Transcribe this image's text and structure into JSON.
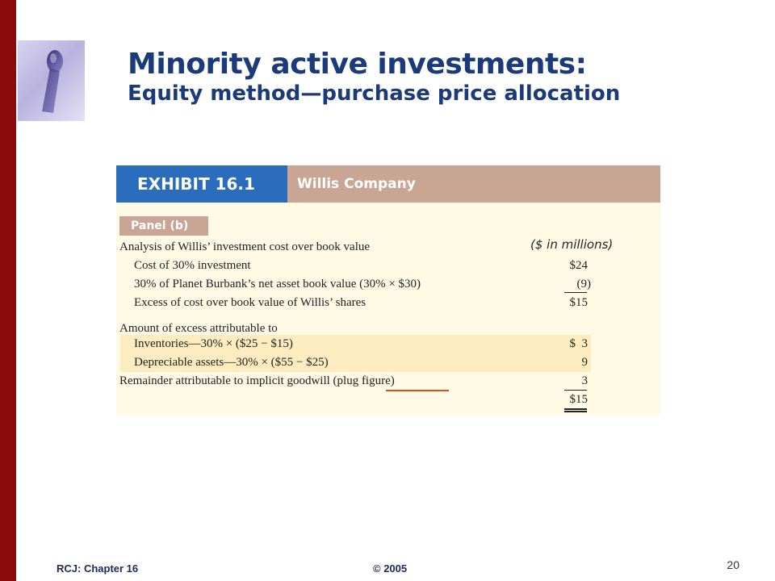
{
  "slide": {
    "title": "Minority active investments:",
    "subtitle": "Equity method—purchase price allocation"
  },
  "exhibit": {
    "label": "EXHIBIT 16.1",
    "company": "Willis Company",
    "panel": "Panel (b)",
    "units": "($ in millions)",
    "rows": [
      {
        "label": "Analysis of Willis’ investment cost over book value",
        "amount": ""
      },
      {
        "label": "Cost of 30% investment",
        "amount": "$24"
      },
      {
        "label": "30% of Planet Burbank’s net asset book value (30% × $30)",
        "amount": "(9)"
      },
      {
        "label": "Excess of cost over book value of Willis’ shares",
        "amount": "$15"
      },
      {
        "label": "Amount of excess attributable to",
        "amount": ""
      },
      {
        "label": "Inventories—30% × ($25 − $15)",
        "amount": "$  3"
      },
      {
        "label": "Depreciable assets—30% × ($55 − $25)",
        "amount": "9"
      },
      {
        "label": "Remainder attributable to implicit goodwill (plug figure)",
        "amount": "3"
      },
      {
        "label": "",
        "amount": "$15"
      }
    ]
  },
  "footer": {
    "chapter": "RCJ: Chapter 16",
    "copyright": "© 2005",
    "page_number": "20"
  },
  "colors": {
    "sidebar": "#8b0a0e",
    "title": "#1a3a7a",
    "exhibit_label_bg": "#2a6dbd",
    "exhibit_header_bg": "#c9a593",
    "exhibit_bg": "#fffae6",
    "highlight": "#fcecbf",
    "plug_underline": "#e04e1a"
  },
  "icons": {
    "logo": "keyhole-logo-icon"
  }
}
